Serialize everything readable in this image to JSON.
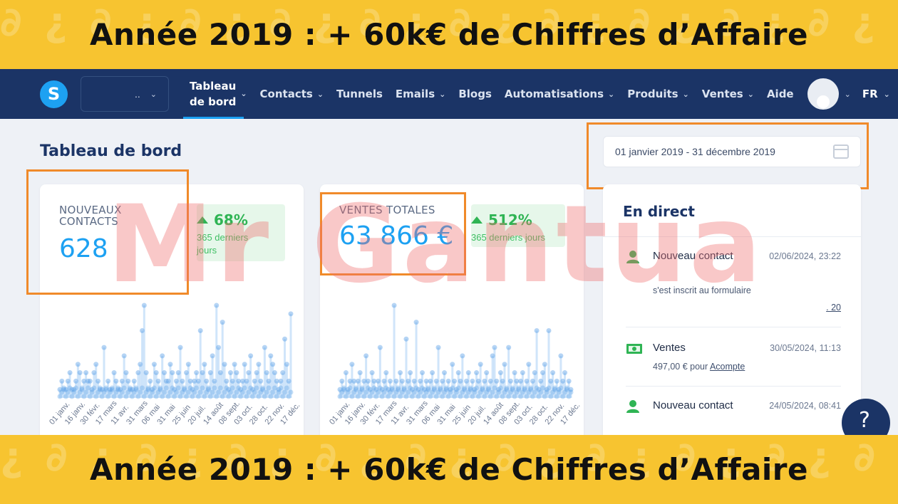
{
  "banner": {
    "title_top": "Année 2019 : + 60k€ de Chiffres d’Affaire",
    "title_bottom": "Année 2019 : + 60k€ de Chiffres d’Affaire"
  },
  "navbar": {
    "logo_letter": "S",
    "workspace_value": "..",
    "items": [
      {
        "label_line1": "Tableau",
        "label_line2": "de bord",
        "active": true
      },
      {
        "label": "Contacts"
      },
      {
        "label": "Tunnels"
      },
      {
        "label": "Emails"
      },
      {
        "label": "Blogs"
      },
      {
        "label": "Automatisations"
      },
      {
        "label": "Produits"
      },
      {
        "label": "Ventes"
      },
      {
        "label": "Aide"
      }
    ],
    "language": "FR"
  },
  "page": {
    "title": "Tableau de bord",
    "date_range": "01 janvier 2019 - 31 décembre 2019",
    "watermark": "Mr Gantua"
  },
  "cards": {
    "contacts": {
      "label_line1": "NOUVEAUX",
      "label_line2": "CONTACTS",
      "value": "628",
      "trend_pct": "68%",
      "trend_sub_line1": "365 derniers",
      "trend_sub_line2": "jours"
    },
    "sales": {
      "label": "VENTES TOTALES",
      "value": "63 866 €",
      "trend_pct": "512%",
      "trend_sub": "365 derniers jours"
    }
  },
  "chart_data": [
    {
      "type": "scatter",
      "name": "contacts",
      "x_tick_labels": [
        "01 janv.",
        "16 janv.",
        "30 févr.",
        "17 mars",
        "11 avr.",
        "31 mars",
        "06 mai",
        "31 mai",
        "25 juin",
        "20 juil.",
        "14 août",
        "08 sept.",
        "03 oct.",
        "28 oct.",
        "22 nov.",
        "17 déc."
      ],
      "values": [
        1,
        2,
        1,
        1,
        2,
        3,
        1,
        1,
        2,
        4,
        3,
        1,
        2,
        3,
        2,
        2,
        1,
        3,
        4,
        2,
        1,
        1,
        6,
        1,
        2,
        1,
        1,
        3,
        2,
        1,
        1,
        2,
        5,
        3,
        2,
        1,
        1,
        2,
        1,
        3,
        4,
        8,
        11,
        3,
        1,
        2,
        1,
        4,
        3,
        2,
        1,
        5,
        3,
        2,
        2,
        4,
        3,
        1,
        2,
        3,
        6,
        2,
        1,
        3,
        4,
        2,
        1,
        2,
        3,
        2,
        8,
        3,
        4,
        2,
        1,
        3,
        5,
        2,
        11,
        6,
        3,
        9,
        4,
        2,
        1,
        3,
        2,
        4,
        3,
        2,
        1,
        2,
        4,
        2,
        3,
        5,
        1,
        2,
        3,
        4,
        2,
        1,
        6,
        3,
        2,
        5,
        4,
        3,
        2,
        1,
        2,
        3,
        7,
        4,
        2,
        10
      ]
    },
    {
      "type": "scatter",
      "name": "sales",
      "x_tick_labels": [
        "01 janv.",
        "16 janv.",
        "30 févr.",
        "17 mars",
        "11 avr.",
        "31 mars",
        "06 mai",
        "31 mai",
        "25 juin",
        "20 juil.",
        "14 août",
        "08 sept.",
        "03 oct.",
        "28 oct.",
        "22 nov.",
        "17 déc."
      ],
      "values": [
        1,
        2,
        1,
        3,
        1,
        2,
        4,
        2,
        1,
        2,
        3,
        1,
        2,
        5,
        2,
        1,
        3,
        2,
        1,
        2,
        6,
        1,
        2,
        3,
        1,
        2,
        1,
        11,
        2,
        1,
        3,
        2,
        1,
        7,
        2,
        3,
        1,
        2,
        9,
        1,
        2,
        3,
        1,
        2,
        1,
        2,
        3,
        1,
        2,
        6,
        1,
        2,
        3,
        1,
        2,
        1,
        4,
        2,
        1,
        3,
        2,
        5,
        1,
        2,
        3,
        1,
        2,
        1,
        3,
        2,
        4,
        1,
        2,
        3,
        1,
        2,
        5,
        6,
        2,
        1,
        3,
        2,
        4,
        1,
        6,
        2,
        1,
        3,
        2,
        1,
        2,
        3,
        1,
        2,
        4,
        1,
        2,
        3,
        8,
        1,
        2,
        3,
        4,
        1,
        8,
        2,
        3,
        1,
        2,
        1,
        5,
        2,
        3,
        1,
        2,
        1
      ]
    }
  ],
  "live": {
    "title": "En direct",
    "events": [
      {
        "title": "Nouveau contact",
        "time": "02/06/2024, 23:22",
        "desc": "s'est inscrit au formulaire",
        "extra": ". 20",
        "icon": "person-icon"
      },
      {
        "title": "Ventes",
        "time": "30/05/2024, 11:13",
        "desc_prefix": "497,00 € pour",
        "desc_link": "Acompte",
        "icon": "money-icon"
      },
      {
        "title": "Nouveau contact",
        "time": "24/05/2024, 08:41",
        "icon": "person-icon"
      }
    ]
  },
  "help": {
    "label": "?"
  },
  "colors": {
    "banner": "#f7c430",
    "navbar": "#1b3466",
    "accent": "#1da1f2",
    "positive": "#2fb454",
    "highlight": "#f08a2a"
  }
}
